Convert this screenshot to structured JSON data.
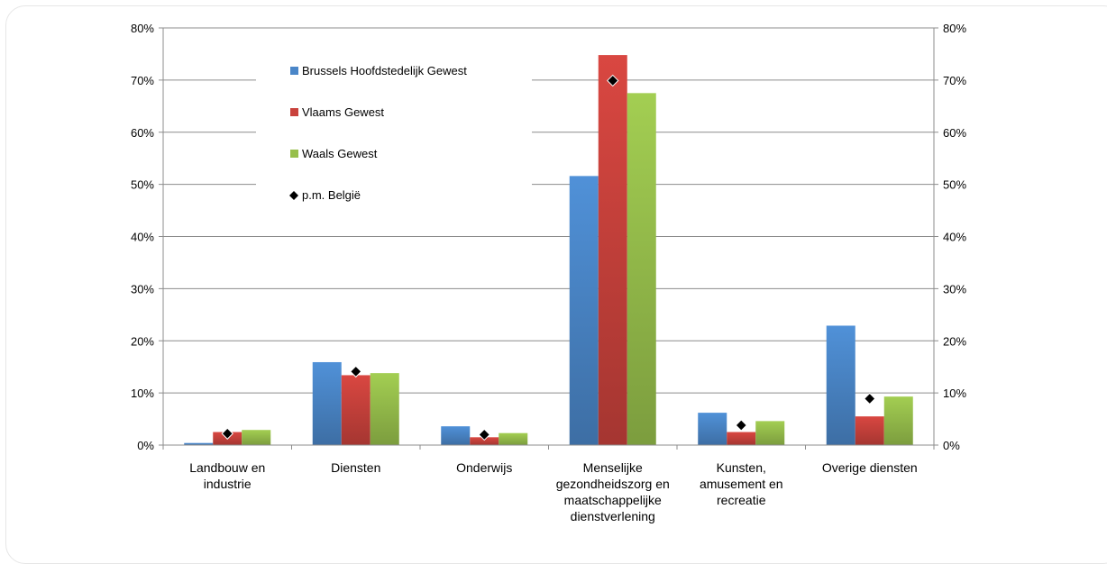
{
  "chart_data": {
    "type": "bar",
    "categories": [
      [
        "Landbouw en",
        "industrie"
      ],
      [
        "Diensten"
      ],
      [
        "Onderwijs"
      ],
      [
        "Menselijke",
        "gezondheidszorg en",
        "maatschappelijke",
        "dienstverlening"
      ],
      [
        "Kunsten,",
        "amusement en",
        "recreatie"
      ],
      [
        "Overige diensten"
      ]
    ],
    "series": [
      {
        "name": "Brussels Hoofdstedelijk Gewest",
        "color": "#4a86c8",
        "values": [
          0.4,
          15.9,
          3.6,
          51.6,
          6.2,
          22.9
        ]
      },
      {
        "name": "Vlaams Gewest",
        "color": "#c9423c",
        "values": [
          2.5,
          13.4,
          1.5,
          74.8,
          2.5,
          5.5
        ]
      },
      {
        "name": "Waals Gewest",
        "color": "#97bf4c",
        "values": [
          2.9,
          13.8,
          2.3,
          67.5,
          4.6,
          9.3
        ]
      }
    ],
    "markers": {
      "name": "p.m. België",
      "values": [
        2.2,
        14.1,
        2.0,
        69.9,
        3.8,
        8.9
      ]
    },
    "ylim": [
      0,
      80
    ],
    "yticks": [
      "0%",
      "10%",
      "20%",
      "30%",
      "40%",
      "50%",
      "60%",
      "70%",
      "80%"
    ],
    "y_axis_right": true,
    "grid": true,
    "legend_position": "top-left-inside"
  }
}
